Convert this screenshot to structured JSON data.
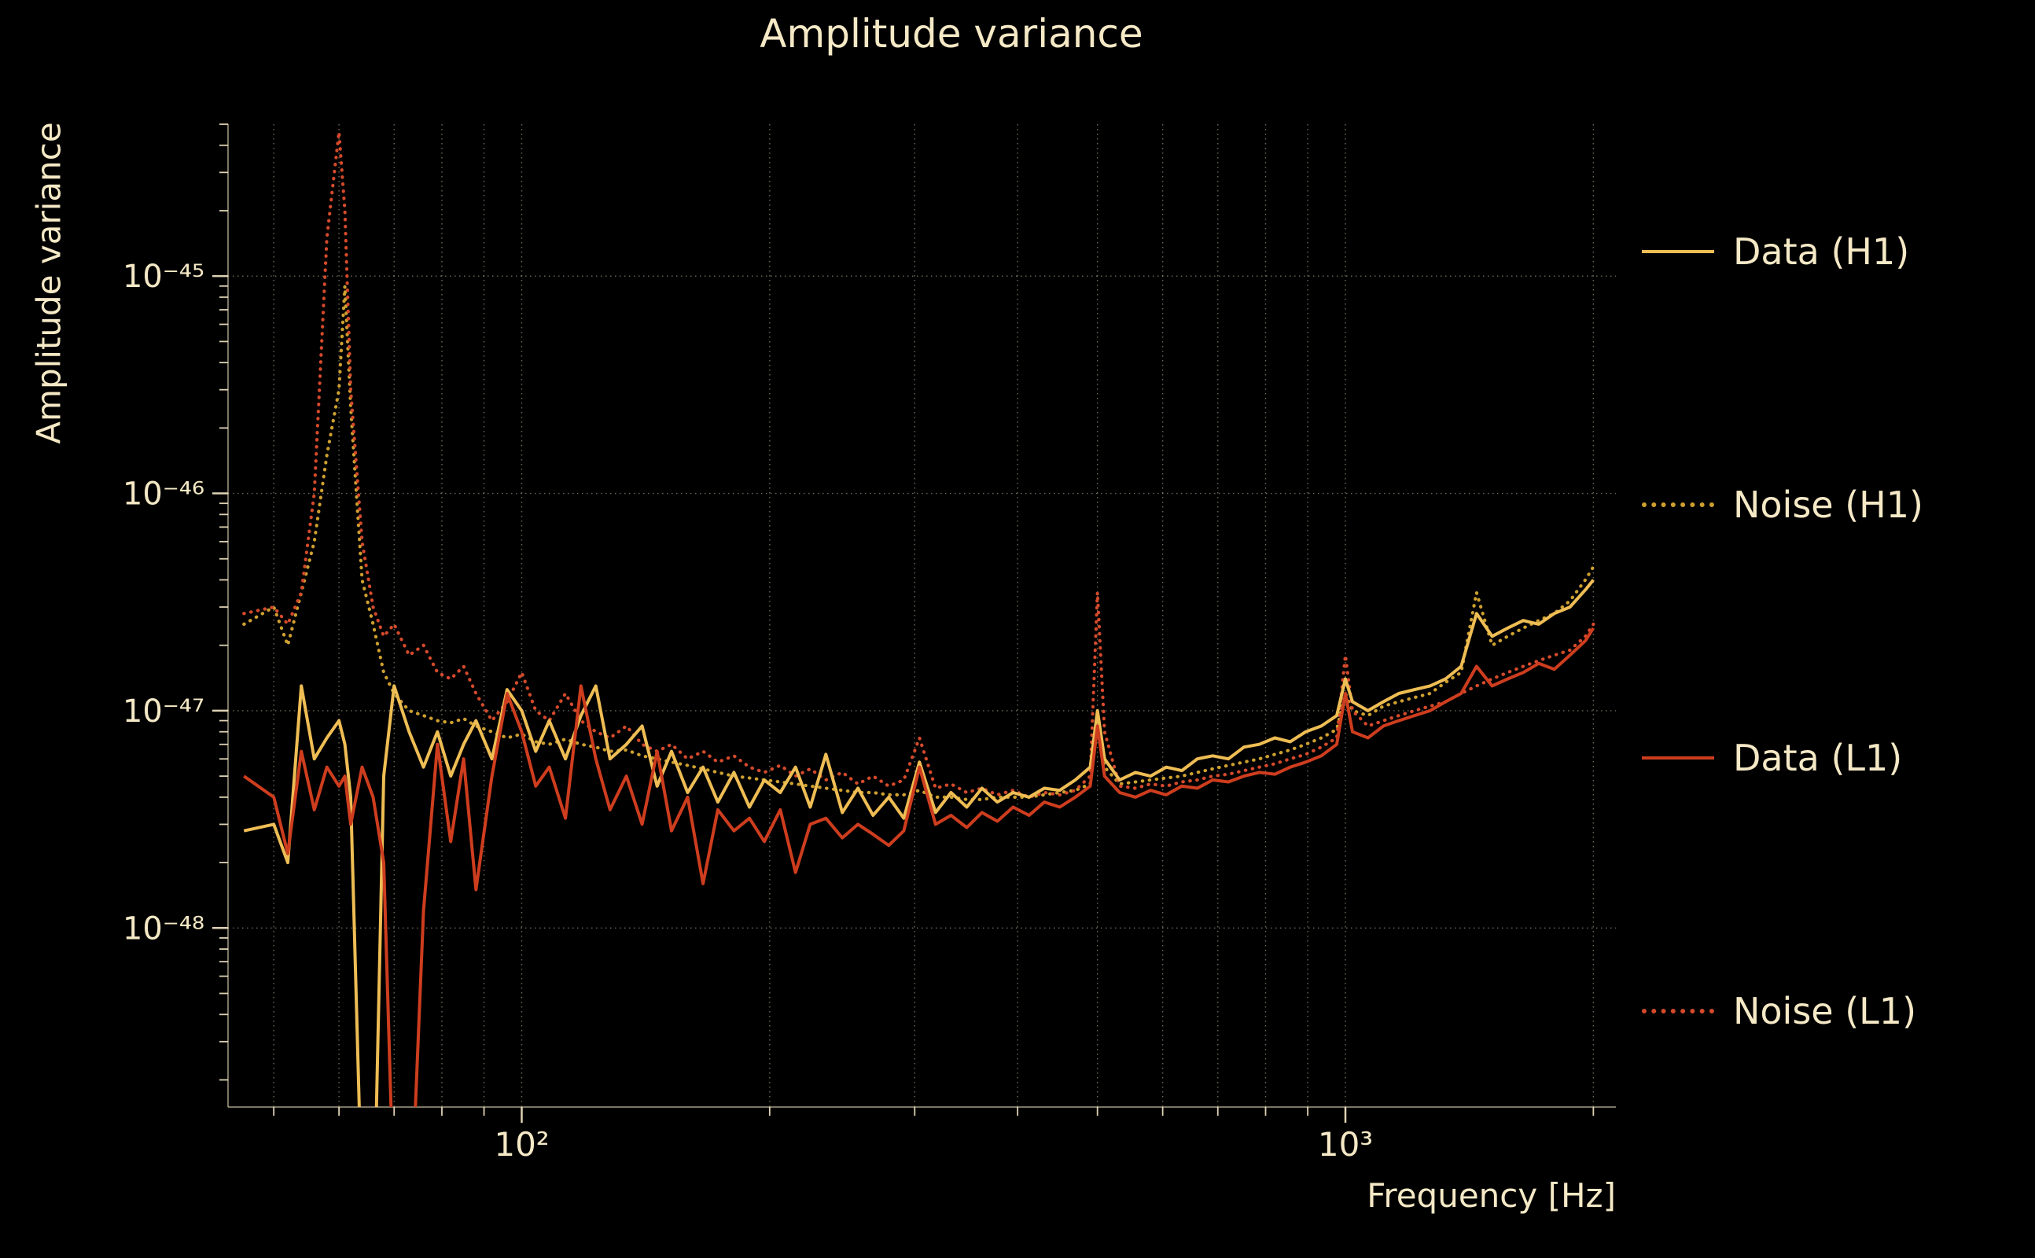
{
  "colors": {
    "background": "#000000",
    "text": "#f5e9c6",
    "grid": "#f5e9c6",
    "data_h1": "#eebd54",
    "noise_h1": "#cda02f",
    "data_l1": "#cd3d1e",
    "noise_l1": "#d44a2b"
  },
  "chart_data": {
    "type": "line",
    "title": "Amplitude variance",
    "xlabel": "Frequency [Hz]",
    "ylabel": "Amplitude variance",
    "xscale": "log",
    "yscale": "log",
    "grid": true,
    "legend_position": "right-outside",
    "xlim": [
      44,
      2130
    ],
    "ylim": [
      1.5e-49,
      5e-45
    ],
    "x_ticks": [
      {
        "value": 100,
        "label": "10²"
      },
      {
        "value": 1000,
        "label": "10³"
      }
    ],
    "y_ticks": [
      {
        "value": 1e-45,
        "label": "10⁻⁴⁵"
      },
      {
        "value": 1e-46,
        "label": "10⁻⁴⁶"
      },
      {
        "value": 1e-47,
        "label": "10⁻⁴⁷"
      },
      {
        "value": 1e-48,
        "label": "10⁻⁴⁸"
      }
    ],
    "value_unit": 1e-48,
    "x": [
      46,
      50,
      52,
      54,
      56,
      58,
      60,
      61,
      62,
      64,
      66,
      68,
      70,
      73,
      76,
      79,
      82,
      85,
      88,
      92,
      96,
      100,
      104,
      108,
      113,
      118,
      123,
      128,
      134,
      140,
      146,
      152,
      159,
      166,
      173,
      181,
      189,
      197,
      206,
      215,
      224,
      234,
      245,
      256,
      267,
      279,
      291,
      304,
      318,
      332,
      347,
      362,
      378,
      395,
      413,
      431,
      450,
      470,
      490,
      500,
      510,
      532,
      556,
      580,
      606,
      633,
      661,
      690,
      721,
      753,
      786,
      821,
      857,
      895,
      935,
      976,
      1000,
      1020,
      1065,
      1112,
      1161,
      1213,
      1267,
      1323,
      1382,
      1443,
      1507,
      1574,
      1644,
      1717,
      1793,
      1873,
      1956,
      2000
    ],
    "series": [
      {
        "name": "Data (H1)",
        "color": "#eebd54",
        "style": "solid",
        "values": [
          2.8,
          3.0,
          2.0,
          13.0,
          6.0,
          7.5,
          9.0,
          7.0,
          4.0,
          0.05,
          0.03,
          5.0,
          13.0,
          8.0,
          5.5,
          8.0,
          5.0,
          7.0,
          9.0,
          6.0,
          12.5,
          10.0,
          6.5,
          9.0,
          6.0,
          9.5,
          13.0,
          6.0,
          7.0,
          8.5,
          4.5,
          6.5,
          4.2,
          5.5,
          3.8,
          5.2,
          3.6,
          4.8,
          4.2,
          5.5,
          3.6,
          6.3,
          3.4,
          4.4,
          3.3,
          4.0,
          3.2,
          5.8,
          3.4,
          4.2,
          3.6,
          4.4,
          3.8,
          4.2,
          4.0,
          4.4,
          4.3,
          4.8,
          5.5,
          10.0,
          6.0,
          4.8,
          5.2,
          5.0,
          5.5,
          5.3,
          6.0,
          6.2,
          6.0,
          6.8,
          7.0,
          7.5,
          7.2,
          8.0,
          8.5,
          9.5,
          14.0,
          11.0,
          10.0,
          11.0,
          12.0,
          12.5,
          13.0,
          14.0,
          16.0,
          28.0,
          22.0,
          24.0,
          26.0,
          25.0,
          28.0,
          30.0,
          36.0,
          40.0
        ]
      },
      {
        "name": "Noise (H1)",
        "color": "#cda02f",
        "style": "dotted",
        "values": [
          25,
          30,
          20,
          35,
          60,
          150,
          300,
          900,
          250,
          40,
          25,
          15,
          12,
          10,
          9.5,
          9.0,
          8.8,
          9.2,
          8.5,
          8.0,
          7.5,
          7.8,
          7.2,
          7.0,
          7.4,
          7.0,
          6.8,
          6.5,
          6.6,
          6.2,
          6.0,
          5.8,
          5.6,
          5.4,
          5.2,
          5.0,
          4.9,
          4.8,
          4.7,
          4.6,
          4.5,
          4.4,
          4.3,
          4.2,
          4.2,
          4.1,
          4.1,
          4.3,
          4.0,
          4.0,
          3.9,
          3.9,
          4.0,
          4.0,
          4.0,
          4.1,
          4.2,
          4.3,
          4.6,
          9.0,
          5.5,
          4.6,
          4.7,
          4.8,
          4.9,
          5.0,
          5.2,
          5.4,
          5.6,
          5.8,
          6.0,
          6.3,
          6.6,
          7.0,
          7.5,
          8.2,
          12.0,
          10.0,
          9.5,
          10.5,
          11.0,
          11.5,
          12.0,
          13.5,
          15.0,
          35.0,
          20.0,
          22.0,
          24.0,
          26.0,
          28.0,
          32.0,
          40.0,
          46.0
        ]
      },
      {
        "name": "Data (L1)",
        "color": "#cd3d1e",
        "style": "solid",
        "values": [
          5.0,
          4.0,
          2.2,
          6.5,
          3.5,
          5.5,
          4.5,
          5.0,
          3.0,
          5.5,
          4.0,
          2.0,
          0.05,
          0.03,
          1.2,
          7.0,
          2.5,
          6.0,
          1.5,
          5.0,
          12.0,
          8.0,
          4.5,
          5.5,
          3.2,
          13.0,
          6.0,
          3.5,
          5.0,
          3.0,
          6.5,
          2.8,
          4.0,
          1.6,
          3.5,
          2.8,
          3.2,
          2.5,
          3.5,
          1.8,
          3.0,
          3.2,
          2.6,
          3.0,
          2.7,
          2.4,
          2.8,
          5.5,
          3.0,
          3.3,
          2.9,
          3.4,
          3.1,
          3.6,
          3.3,
          3.8,
          3.6,
          4.0,
          4.5,
          8.5,
          5.0,
          4.2,
          4.0,
          4.3,
          4.1,
          4.5,
          4.4,
          4.8,
          4.7,
          5.0,
          5.2,
          5.1,
          5.5,
          5.8,
          6.2,
          7.0,
          12.0,
          8.0,
          7.5,
          8.5,
          9.0,
          9.5,
          10.0,
          11.0,
          12.0,
          16.0,
          13.0,
          14.0,
          15.0,
          16.5,
          15.5,
          18.0,
          21.0,
          24.0
        ]
      },
      {
        "name": "Noise (L1)",
        "color": "#d44a2b",
        "style": "dotted",
        "values": [
          28,
          30,
          25,
          35,
          100,
          1500,
          4600,
          2000,
          300,
          60,
          30,
          22,
          25,
          18,
          20,
          15,
          14,
          16,
          12,
          9,
          11,
          15,
          10,
          9,
          12,
          9,
          8,
          7.5,
          8.5,
          7,
          6.5,
          7,
          6,
          6.5,
          5.8,
          6.2,
          5.5,
          5.2,
          5.6,
          5.0,
          5.4,
          4.8,
          5.2,
          4.6,
          5.0,
          4.5,
          4.8,
          7.5,
          4.4,
          4.6,
          4.2,
          4.4,
          4.1,
          4.3,
          4.0,
          4.2,
          4.1,
          4.3,
          5.0,
          35,
          8,
          4.5,
          4.4,
          4.6,
          4.5,
          4.7,
          4.8,
          5.0,
          5.1,
          5.3,
          5.5,
          5.7,
          6.0,
          6.3,
          6.8,
          7.5,
          18,
          10,
          8.5,
          9.0,
          9.5,
          10,
          10.5,
          11,
          12,
          13,
          14,
          15,
          16,
          17,
          18,
          19,
          22,
          25
        ]
      }
    ]
  }
}
